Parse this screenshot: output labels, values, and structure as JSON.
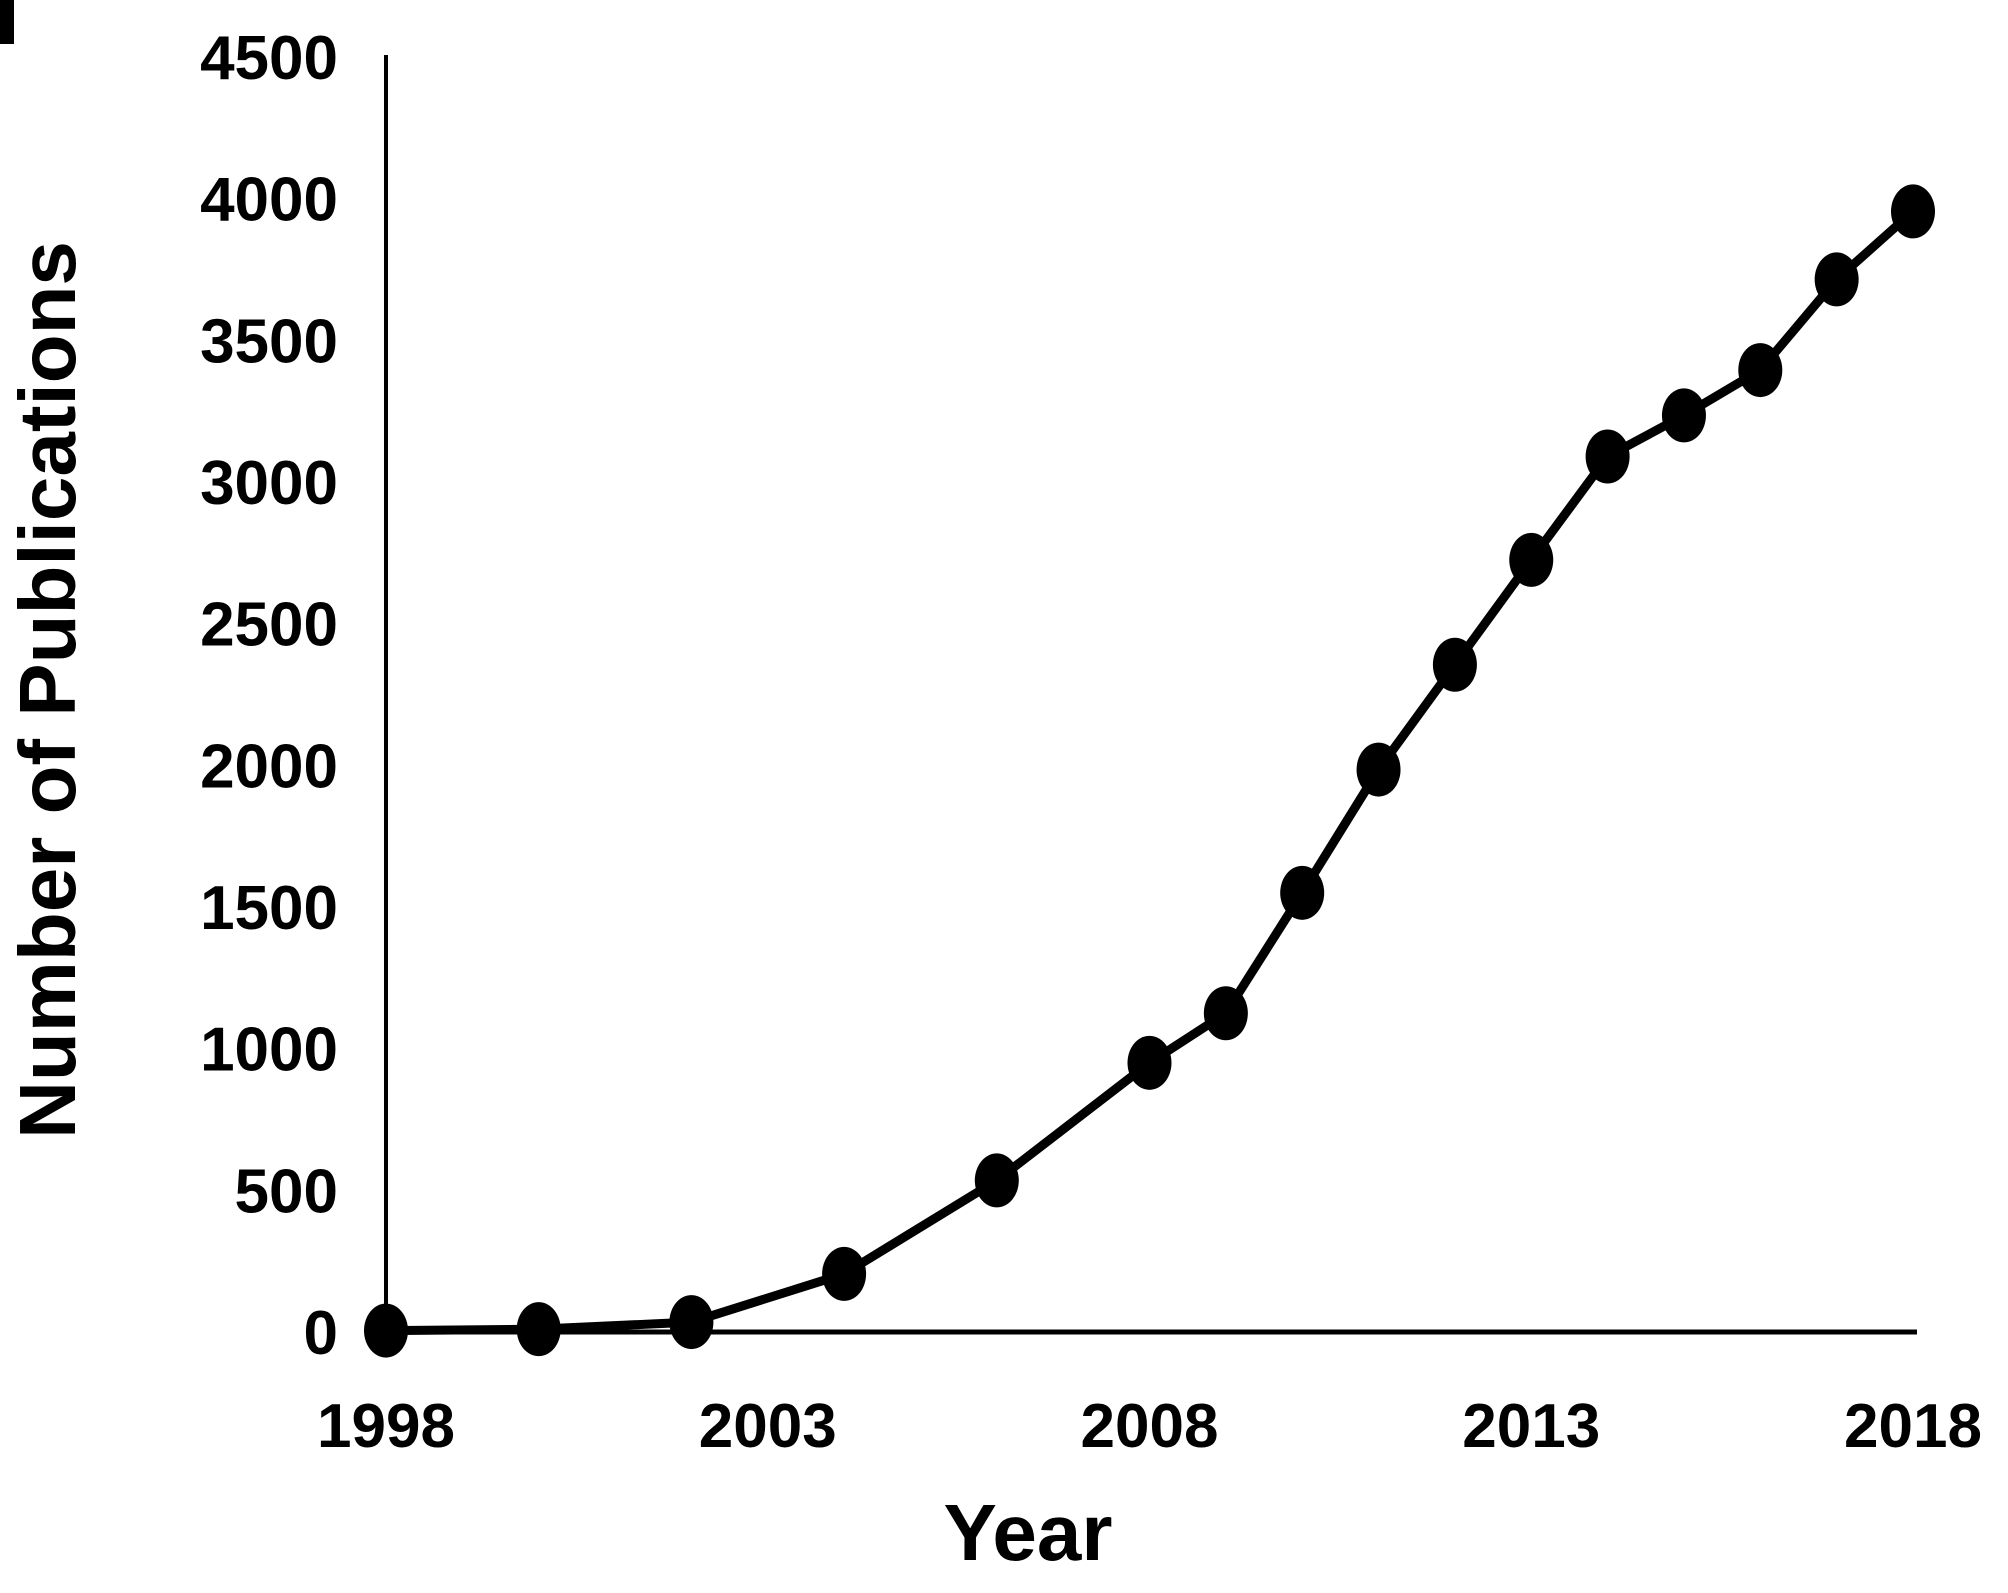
{
  "page": {
    "background": "#ffffff",
    "foreground": "#000000"
  },
  "chart_data": {
    "type": "line",
    "title": "",
    "xlabel": "Year",
    "ylabel": "Number of Publications",
    "x": [
      1998,
      2000,
      2002,
      2004,
      2006,
      2008,
      2009,
      2010,
      2011,
      2012,
      2013,
      2014,
      2015,
      2016,
      2017,
      2018
    ],
    "values": [
      5,
      10,
      35,
      205,
      535,
      950,
      1125,
      1550,
      1985,
      2355,
      2725,
      3090,
      3235,
      3395,
      3715,
      3955
    ],
    "series_name": "Number of Publications",
    "xticks": [
      1998,
      2003,
      2008,
      2013,
      2018
    ],
    "yticks": [
      0,
      500,
      1000,
      1500,
      2000,
      2500,
      3000,
      3500,
      4000,
      4500
    ],
    "xlim": [
      1998,
      2018
    ],
    "ylim": [
      0,
      4500
    ],
    "grid": false,
    "legend_position": "none",
    "line_color": "#000000",
    "marker_color": "#000000",
    "marker_shape": "ellipse"
  }
}
